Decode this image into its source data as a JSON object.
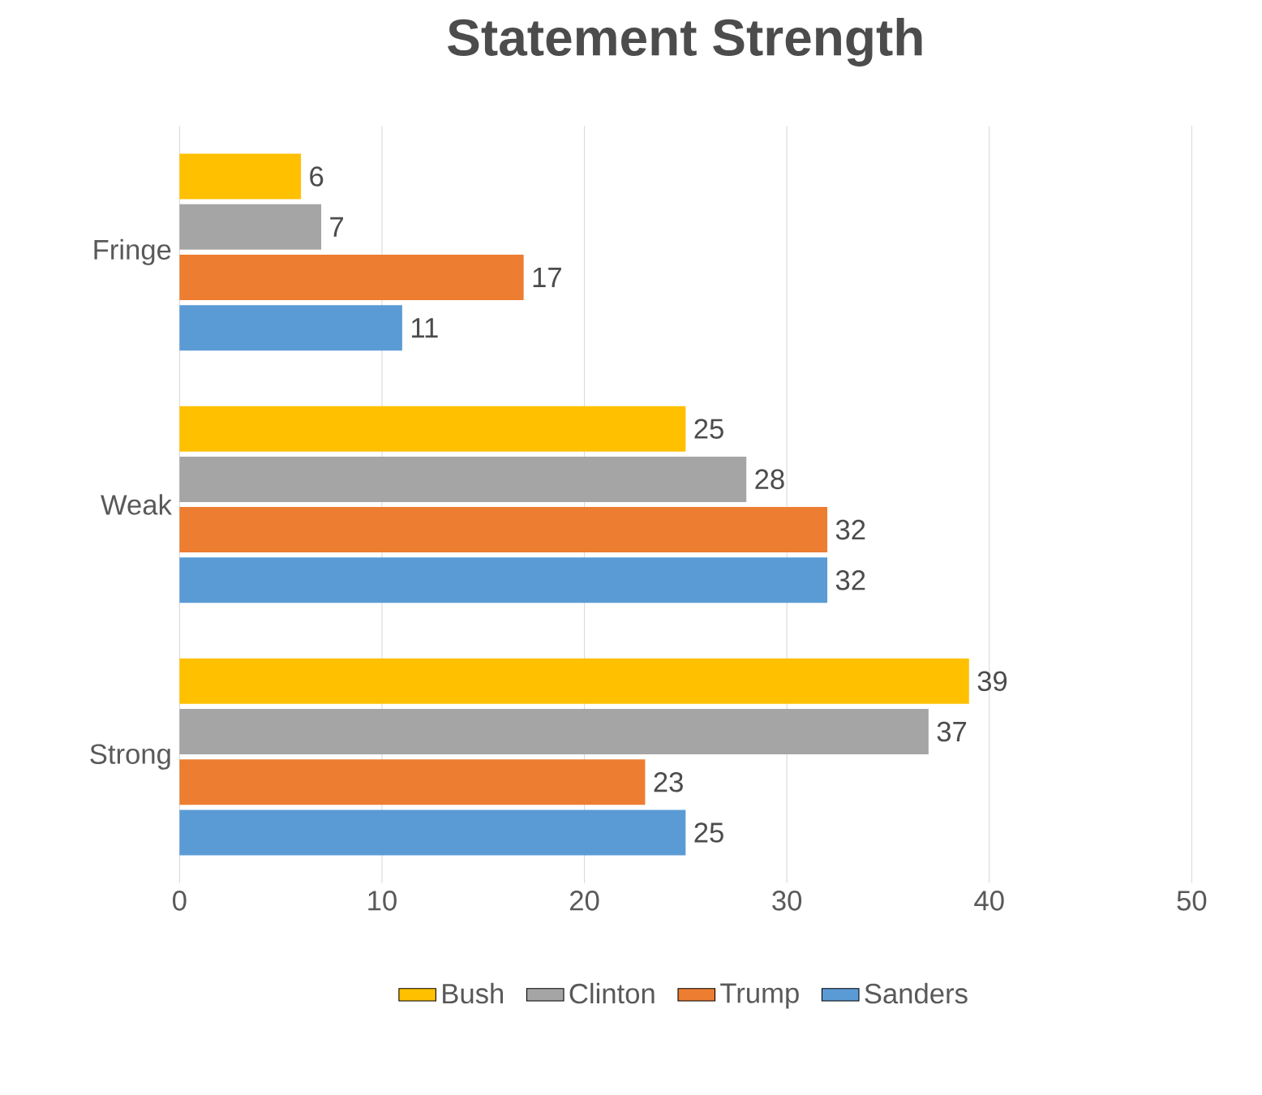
{
  "chart_data": {
    "type": "bar",
    "orientation": "horizontal",
    "title": "Statement Strength",
    "categories": [
      "Fringe",
      "Weak",
      "Strong"
    ],
    "series": [
      {
        "name": "Bush",
        "color": "#ffc000",
        "values": [
          6,
          25,
          39
        ]
      },
      {
        "name": "Clinton",
        "color": "#a5a5a5",
        "values": [
          7,
          28,
          37
        ]
      },
      {
        "name": "Trump",
        "color": "#ed7d31",
        "values": [
          17,
          32,
          23
        ]
      },
      {
        "name": "Sanders",
        "color": "#5b9bd5",
        "values": [
          11,
          32,
          25
        ]
      }
    ],
    "xlim": [
      0,
      50
    ],
    "xticks": [
      0,
      10,
      20,
      30,
      40,
      50
    ],
    "grid": "x",
    "legend": "bottom",
    "data_labels": true
  }
}
